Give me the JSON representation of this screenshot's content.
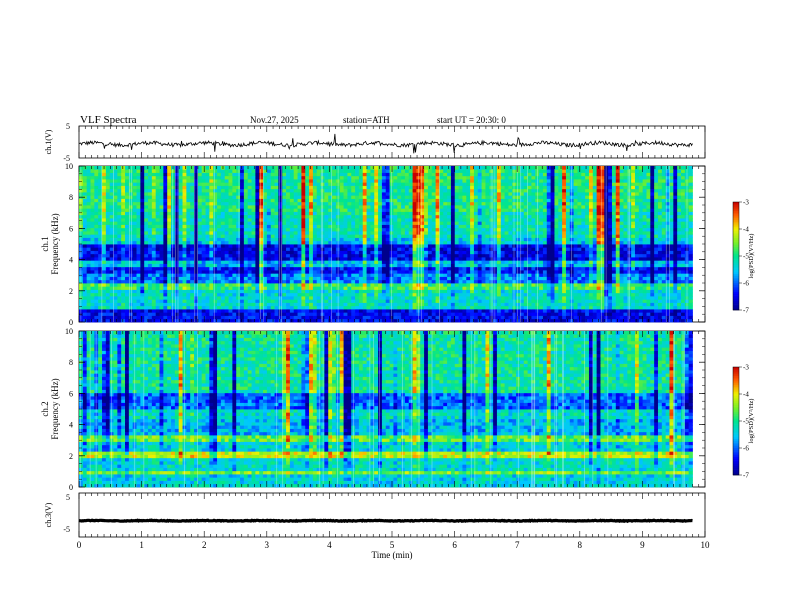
{
  "header": {
    "title": "VLF  Spectra",
    "date": "Nov.27, 2025",
    "station": "station=ATH",
    "start_ut": "start  UT  =   20:30: 0"
  },
  "chart_data": [
    {
      "type": "line",
      "id": "ch1-waveform",
      "ylabel": "ch.1(V)",
      "ylim": [
        -5,
        5
      ],
      "yticks": [
        "5",
        "-5"
      ],
      "xlim": [
        0,
        10
      ],
      "x_end": 9.8,
      "baseline": -0.6,
      "color": "#000000"
    },
    {
      "type": "heatmap",
      "id": "ch1-spectrogram",
      "ylabel": "ch.1\nFrequency (kHz)",
      "ylim": [
        0,
        10
      ],
      "yticks": [
        "0",
        "2",
        "4",
        "6",
        "8",
        "10"
      ],
      "xlim": [
        0,
        10
      ],
      "x_end": 9.8,
      "colorbar": {
        "label": "log(PSD)(V²/Hz)",
        "range": [
          -7,
          -3
        ],
        "ticks": [
          "-3",
          "-4",
          "-5",
          "-6",
          "-7"
        ]
      },
      "bands_khz": [
        {
          "from": 0,
          "to": 0.8,
          "level": -6.5
        },
        {
          "from": 0.8,
          "to": 1.2,
          "level": -5.3
        },
        {
          "from": 1.2,
          "to": 2.0,
          "level": -5.3
        },
        {
          "from": 2.0,
          "to": 2.4,
          "level": -4.8
        },
        {
          "from": 2.4,
          "to": 3.2,
          "level": -5.9
        },
        {
          "from": 3.2,
          "to": 3.6,
          "level": -6.4
        },
        {
          "from": 3.6,
          "to": 4.0,
          "level": -5.6
        },
        {
          "from": 4.0,
          "to": 5.0,
          "level": -6.5
        },
        {
          "from": 5.0,
          "to": 5.4,
          "level": -5.5
        },
        {
          "from": 5.4,
          "to": 7.0,
          "level": -5.2
        },
        {
          "from": 7.0,
          "to": 10.0,
          "level": -5.0
        }
      ]
    },
    {
      "type": "heatmap",
      "id": "ch2-spectrogram",
      "ylabel": "ch.2\nFrequency (kHz)",
      "ylim": [
        0,
        10
      ],
      "yticks": [
        "0",
        "2",
        "4",
        "6",
        "8",
        "10"
      ],
      "xlim": [
        0,
        10
      ],
      "x_end": 9.8,
      "colorbar": {
        "label": "log(PSD)(V²/Hz)",
        "range": [
          -7,
          -3
        ],
        "ticks": [
          "-3",
          "-4",
          "-5",
          "-6",
          "-7"
        ]
      },
      "bands_khz": [
        {
          "from": 0,
          "to": 0.8,
          "level": -5.4
        },
        {
          "from": 0.8,
          "to": 1.1,
          "level": -4.5
        },
        {
          "from": 1.1,
          "to": 1.8,
          "level": -5.3
        },
        {
          "from": 1.8,
          "to": 2.2,
          "level": -4.2
        },
        {
          "from": 2.2,
          "to": 3.0,
          "level": -5.4
        },
        {
          "from": 3.0,
          "to": 3.4,
          "level": -4.6
        },
        {
          "from": 3.4,
          "to": 4.4,
          "level": -5.6
        },
        {
          "from": 4.4,
          "to": 5.0,
          "level": -5.3
        },
        {
          "from": 5.0,
          "to": 6.0,
          "level": -6.0
        },
        {
          "from": 6.0,
          "to": 10.0,
          "level": -5.1
        }
      ]
    },
    {
      "type": "line",
      "id": "ch3-waveform",
      "ylabel": "ch.3(V)",
      "ylim": [
        -5,
        5
      ],
      "yticks": [
        "5",
        "-5"
      ],
      "xlim": [
        0,
        10
      ],
      "x_end": 9.8,
      "baseline": -1.3,
      "color": "#000000",
      "xlabel": "Time  (min)",
      "xticks": [
        "0",
        "1",
        "2",
        "3",
        "4",
        "5",
        "6",
        "7",
        "8",
        "9",
        "10"
      ]
    }
  ]
}
